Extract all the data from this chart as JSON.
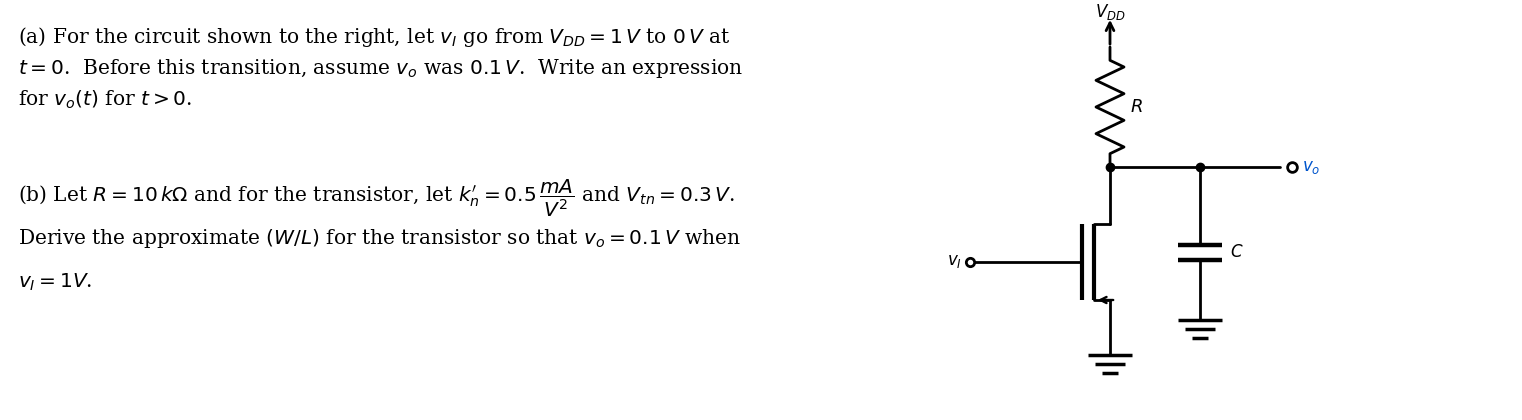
{
  "background_color": "#ffffff",
  "text_color": "#000000",
  "circuit_color": "#000000",
  "vo_color": "#0055cc",
  "fig_width": 15.22,
  "fig_height": 4.2,
  "dpi": 100
}
